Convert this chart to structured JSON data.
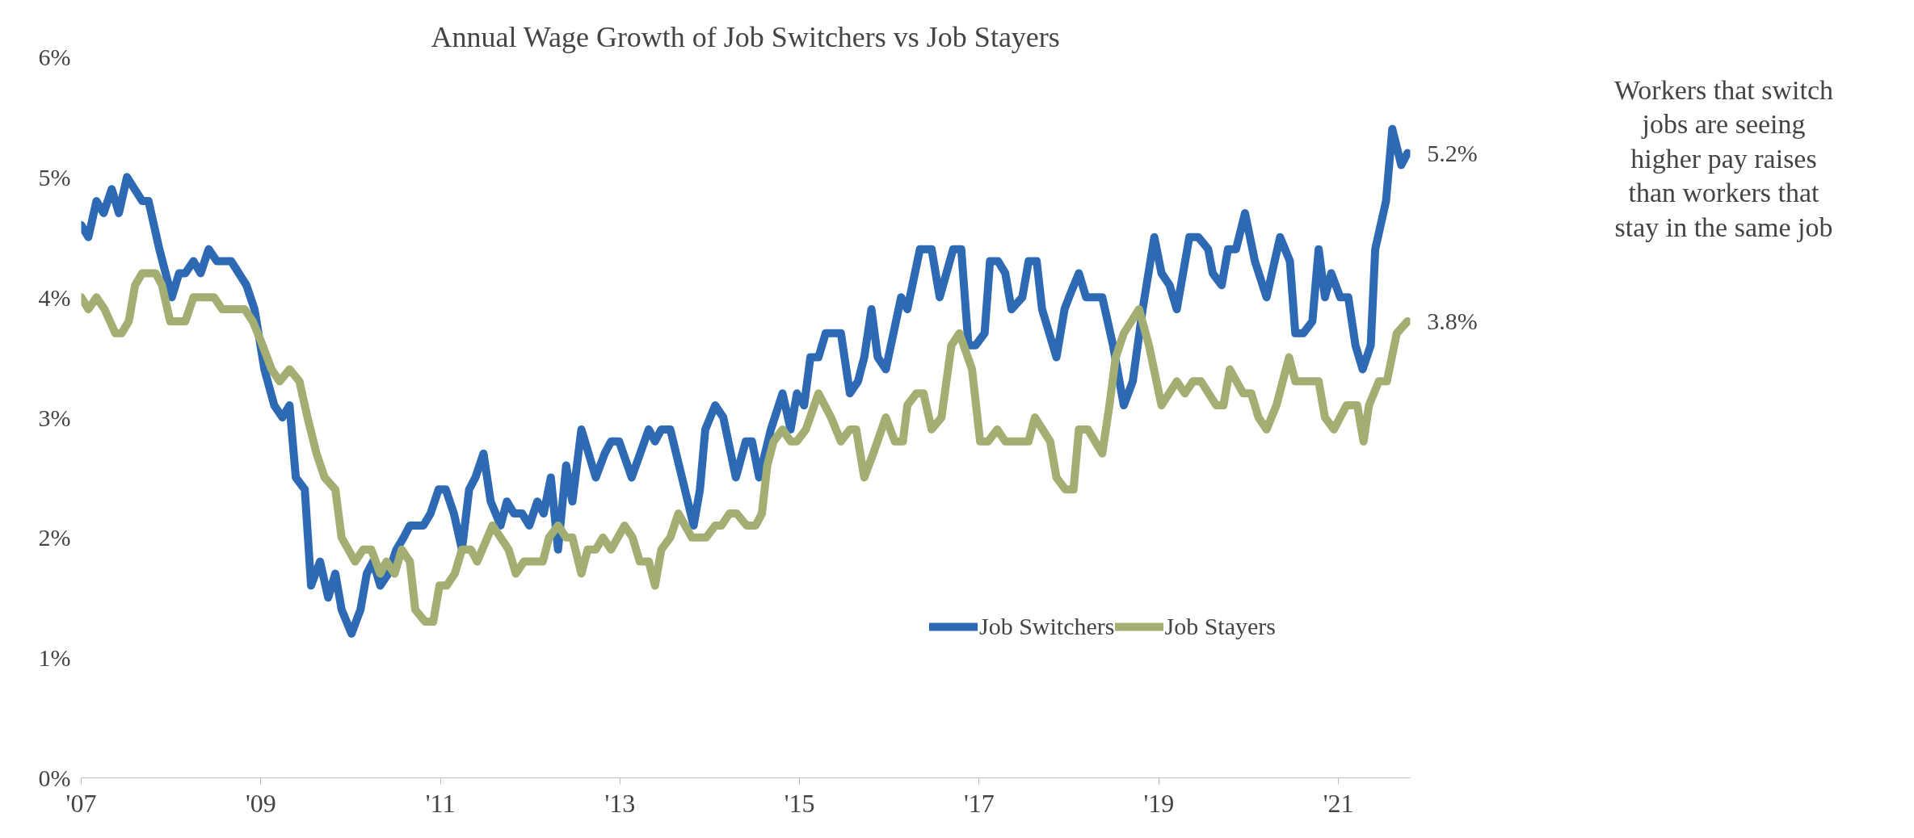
{
  "chart_data": {
    "type": "line",
    "title": "Annual Wage Growth of Job Switchers vs Job Stayers",
    "xlim": [
      2007,
      2021.8
    ],
    "xticks": [
      {
        "value": 2007,
        "label": "'07"
      },
      {
        "value": 2009,
        "label": "'09"
      },
      {
        "value": 2011,
        "label": "'11"
      },
      {
        "value": 2013,
        "label": "'13"
      },
      {
        "value": 2015,
        "label": "'15"
      },
      {
        "value": 2017,
        "label": "'17"
      },
      {
        "value": 2019,
        "label": "'19"
      },
      {
        "value": 2021,
        "label": "'21"
      }
    ],
    "ylim": [
      0,
      6
    ],
    "yticks": [
      {
        "value": 0,
        "label": "0%"
      },
      {
        "value": 1,
        "label": "1%"
      },
      {
        "value": 2,
        "label": "2%"
      },
      {
        "value": 3,
        "label": "3%"
      },
      {
        "value": 4,
        "label": "4%"
      },
      {
        "value": 5,
        "label": "5%"
      },
      {
        "value": 6,
        "label": "6%"
      }
    ],
    "grid": false,
    "legend": "bottom right",
    "line_style": "solid",
    "marker": "none",
    "series": [
      {
        "name": "Job Switchers",
        "color": "#2e6ab4",
        "x": [
          2007.0,
          2007.08,
          2007.17,
          2007.25,
          2007.34,
          2007.42,
          2007.51,
          2007.68,
          2007.75,
          2007.87,
          2008.01,
          2008.09,
          2008.16,
          2008.25,
          2008.33,
          2008.42,
          2008.51,
          2008.67,
          2008.84,
          2008.93,
          2009.04,
          2009.15,
          2009.24,
          2009.32,
          2009.39,
          2009.49,
          2009.56,
          2009.66,
          2009.75,
          2009.83,
          2009.9,
          2010.01,
          2010.11,
          2010.18,
          2010.25,
          2010.33,
          2010.42,
          2010.51,
          2010.59,
          2010.66,
          2010.81,
          2010.89,
          2010.98,
          2011.06,
          2011.15,
          2011.24,
          2011.32,
          2011.39,
          2011.48,
          2011.56,
          2011.67,
          2011.74,
          2011.82,
          2011.91,
          2011.99,
          2012.08,
          2012.15,
          2012.23,
          2012.31,
          2012.4,
          2012.47,
          2012.57,
          2012.73,
          2012.83,
          2012.9,
          2012.99,
          2013.13,
          2013.32,
          2013.39,
          2013.46,
          2013.56,
          2013.82,
          2013.89,
          2013.95,
          2014.06,
          2014.15,
          2014.29,
          2014.4,
          2014.47,
          2014.55,
          2014.68,
          2014.81,
          2014.9,
          2014.97,
          2015.05,
          2015.12,
          2015.21,
          2015.29,
          2015.46,
          2015.56,
          2015.65,
          2015.72,
          2015.8,
          2015.87,
          2015.96,
          2016.13,
          2016.2,
          2016.34,
          2016.47,
          2016.56,
          2016.71,
          2016.8,
          2016.88,
          2016.96,
          2017.06,
          2017.12,
          2017.21,
          2017.29,
          2017.36,
          2017.48,
          2017.55,
          2017.64,
          2017.7,
          2017.86,
          2017.95,
          2018.0,
          2018.11,
          2018.19,
          2018.37,
          2018.49,
          2018.61,
          2018.71,
          2018.82,
          2018.95,
          2019.03,
          2019.12,
          2019.2,
          2019.34,
          2019.44,
          2019.55,
          2019.6,
          2019.7,
          2019.77,
          2019.86,
          2019.96,
          2020.07,
          2020.2,
          2020.35,
          2020.46,
          2020.52,
          2020.61,
          2020.71,
          2020.78,
          2020.85,
          2020.92,
          2021.02,
          2021.11,
          2021.19,
          2021.27,
          2021.36,
          2021.41,
          2021.53,
          2021.6,
          2021.7,
          2021.77
        ],
        "values": [
          4.6,
          4.5,
          4.8,
          4.7,
          4.9,
          4.7,
          5.0,
          4.8,
          4.8,
          4.4,
          4.0,
          4.2,
          4.2,
          4.3,
          4.2,
          4.4,
          4.3,
          4.3,
          4.1,
          3.9,
          3.4,
          3.1,
          3.0,
          3.1,
          2.5,
          2.4,
          1.6,
          1.8,
          1.5,
          1.7,
          1.4,
          1.2,
          1.4,
          1.7,
          1.8,
          1.6,
          1.7,
          1.9,
          2.0,
          2.1,
          2.1,
          2.2,
          2.4,
          2.4,
          2.2,
          1.9,
          2.4,
          2.5,
          2.7,
          2.3,
          2.1,
          2.3,
          2.2,
          2.2,
          2.1,
          2.3,
          2.2,
          2.5,
          1.9,
          2.6,
          2.3,
          2.9,
          2.5,
          2.7,
          2.8,
          2.8,
          2.5,
          2.9,
          2.8,
          2.9,
          2.9,
          2.1,
          2.4,
          2.9,
          3.1,
          3.0,
          2.5,
          2.8,
          2.8,
          2.5,
          2.9,
          3.2,
          2.9,
          3.2,
          3.1,
          3.5,
          3.5,
          3.7,
          3.7,
          3.2,
          3.3,
          3.5,
          3.9,
          3.5,
          3.4,
          4.0,
          3.9,
          4.4,
          4.4,
          4.0,
          4.4,
          4.4,
          3.6,
          3.6,
          3.7,
          4.3,
          4.3,
          4.2,
          3.9,
          4.0,
          4.3,
          4.3,
          3.9,
          3.5,
          3.9,
          4.0,
          4.2,
          4.0,
          4.0,
          3.6,
          3.1,
          3.3,
          3.9,
          4.5,
          4.2,
          4.1,
          3.9,
          4.5,
          4.5,
          4.4,
          4.2,
          4.1,
          4.4,
          4.4,
          4.7,
          4.3,
          4.0,
          4.5,
          4.3,
          3.7,
          3.7,
          3.8,
          4.4,
          4.0,
          4.2,
          4.0,
          4.0,
          3.6,
          3.4,
          3.6,
          4.4,
          4.8,
          5.4,
          5.1,
          5.2
        ]
      },
      {
        "name": "Job Stayers",
        "color": "#a3ae72",
        "x": [
          2007.0,
          2007.08,
          2007.17,
          2007.26,
          2007.38,
          2007.45,
          2007.53,
          2007.6,
          2007.68,
          2007.83,
          2007.9,
          2007.99,
          2008.16,
          2008.25,
          2008.48,
          2008.57,
          2008.82,
          2008.91,
          2009.02,
          2009.12,
          2009.21,
          2009.32,
          2009.43,
          2009.52,
          2009.62,
          2009.71,
          2009.83,
          2009.9,
          2010.05,
          2010.14,
          2010.23,
          2010.33,
          2010.4,
          2010.49,
          2010.57,
          2010.66,
          2010.72,
          2010.83,
          2010.92,
          2010.99,
          2011.07,
          2011.16,
          2011.24,
          2011.34,
          2011.41,
          2011.58,
          2011.67,
          2011.76,
          2011.84,
          2011.93,
          2012.14,
          2012.21,
          2012.31,
          2012.4,
          2012.47,
          2012.57,
          2012.64,
          2012.73,
          2012.81,
          2012.9,
          2013.05,
          2013.14,
          2013.22,
          2013.32,
          2013.39,
          2013.46,
          2013.56,
          2013.65,
          2013.8,
          2013.96,
          2014.06,
          2014.13,
          2014.22,
          2014.3,
          2014.41,
          2014.51,
          2014.58,
          2014.64,
          2014.71,
          2014.81,
          2014.9,
          2014.97,
          2015.07,
          2015.21,
          2015.35,
          2015.46,
          2015.56,
          2015.63,
          2015.72,
          2015.82,
          2015.96,
          2016.06,
          2016.15,
          2016.2,
          2016.3,
          2016.38,
          2016.47,
          2016.58,
          2016.69,
          2016.78,
          2016.92,
          2017.01,
          2017.1,
          2017.2,
          2017.29,
          2017.55,
          2017.62,
          2017.79,
          2017.86,
          2017.96,
          2018.05,
          2018.11,
          2018.21,
          2018.37,
          2018.45,
          2018.52,
          2018.61,
          2018.78,
          2018.89,
          2019.03,
          2019.2,
          2019.29,
          2019.38,
          2019.47,
          2019.64,
          2019.72,
          2019.79,
          2019.94,
          2020.03,
          2020.11,
          2020.2,
          2020.31,
          2020.45,
          2020.52,
          2020.78,
          2020.85,
          2020.95,
          2021.09,
          2021.21,
          2021.28,
          2021.34,
          2021.45,
          2021.54,
          2021.65,
          2021.77
        ],
        "values": [
          4.0,
          3.9,
          4.0,
          3.9,
          3.7,
          3.7,
          3.8,
          4.1,
          4.2,
          4.2,
          4.1,
          3.8,
          3.8,
          4.0,
          4.0,
          3.9,
          3.9,
          3.8,
          3.6,
          3.4,
          3.3,
          3.4,
          3.3,
          3.0,
          2.7,
          2.5,
          2.4,
          2.0,
          1.8,
          1.9,
          1.9,
          1.7,
          1.8,
          1.7,
          1.9,
          1.8,
          1.4,
          1.3,
          1.3,
          1.6,
          1.6,
          1.7,
          1.9,
          1.9,
          1.8,
          2.1,
          2.0,
          1.9,
          1.7,
          1.8,
          1.8,
          2.0,
          2.1,
          2.0,
          2.0,
          1.7,
          1.9,
          1.9,
          2.0,
          1.9,
          2.1,
          2.0,
          1.8,
          1.8,
          1.6,
          1.9,
          2.0,
          2.2,
          2.0,
          2.0,
          2.1,
          2.1,
          2.2,
          2.2,
          2.1,
          2.1,
          2.2,
          2.6,
          2.8,
          2.9,
          2.8,
          2.8,
          2.9,
          3.2,
          3.0,
          2.8,
          2.9,
          2.9,
          2.5,
          2.7,
          3.0,
          2.8,
          2.8,
          3.1,
          3.2,
          3.2,
          2.9,
          3.0,
          3.6,
          3.7,
          3.4,
          2.8,
          2.8,
          2.9,
          2.8,
          2.8,
          3.0,
          2.8,
          2.5,
          2.4,
          2.4,
          2.9,
          2.9,
          2.7,
          3.1,
          3.5,
          3.7,
          3.9,
          3.6,
          3.1,
          3.3,
          3.2,
          3.3,
          3.3,
          3.1,
          3.1,
          3.4,
          3.2,
          3.2,
          3.0,
          2.9,
          3.1,
          3.5,
          3.3,
          3.3,
          3.0,
          2.9,
          3.1,
          3.1,
          2.8,
          3.1,
          3.3,
          3.3,
          3.7,
          3.8
        ]
      }
    ],
    "annotations": [
      {
        "text": "5.2%",
        "x": 2021.77,
        "y": 5.2
      },
      {
        "text": "3.8%",
        "x": 2021.77,
        "y": 3.8
      },
      "Workers that switch jobs are seeing higher pay raises than workers that stay in the same job"
    ]
  }
}
